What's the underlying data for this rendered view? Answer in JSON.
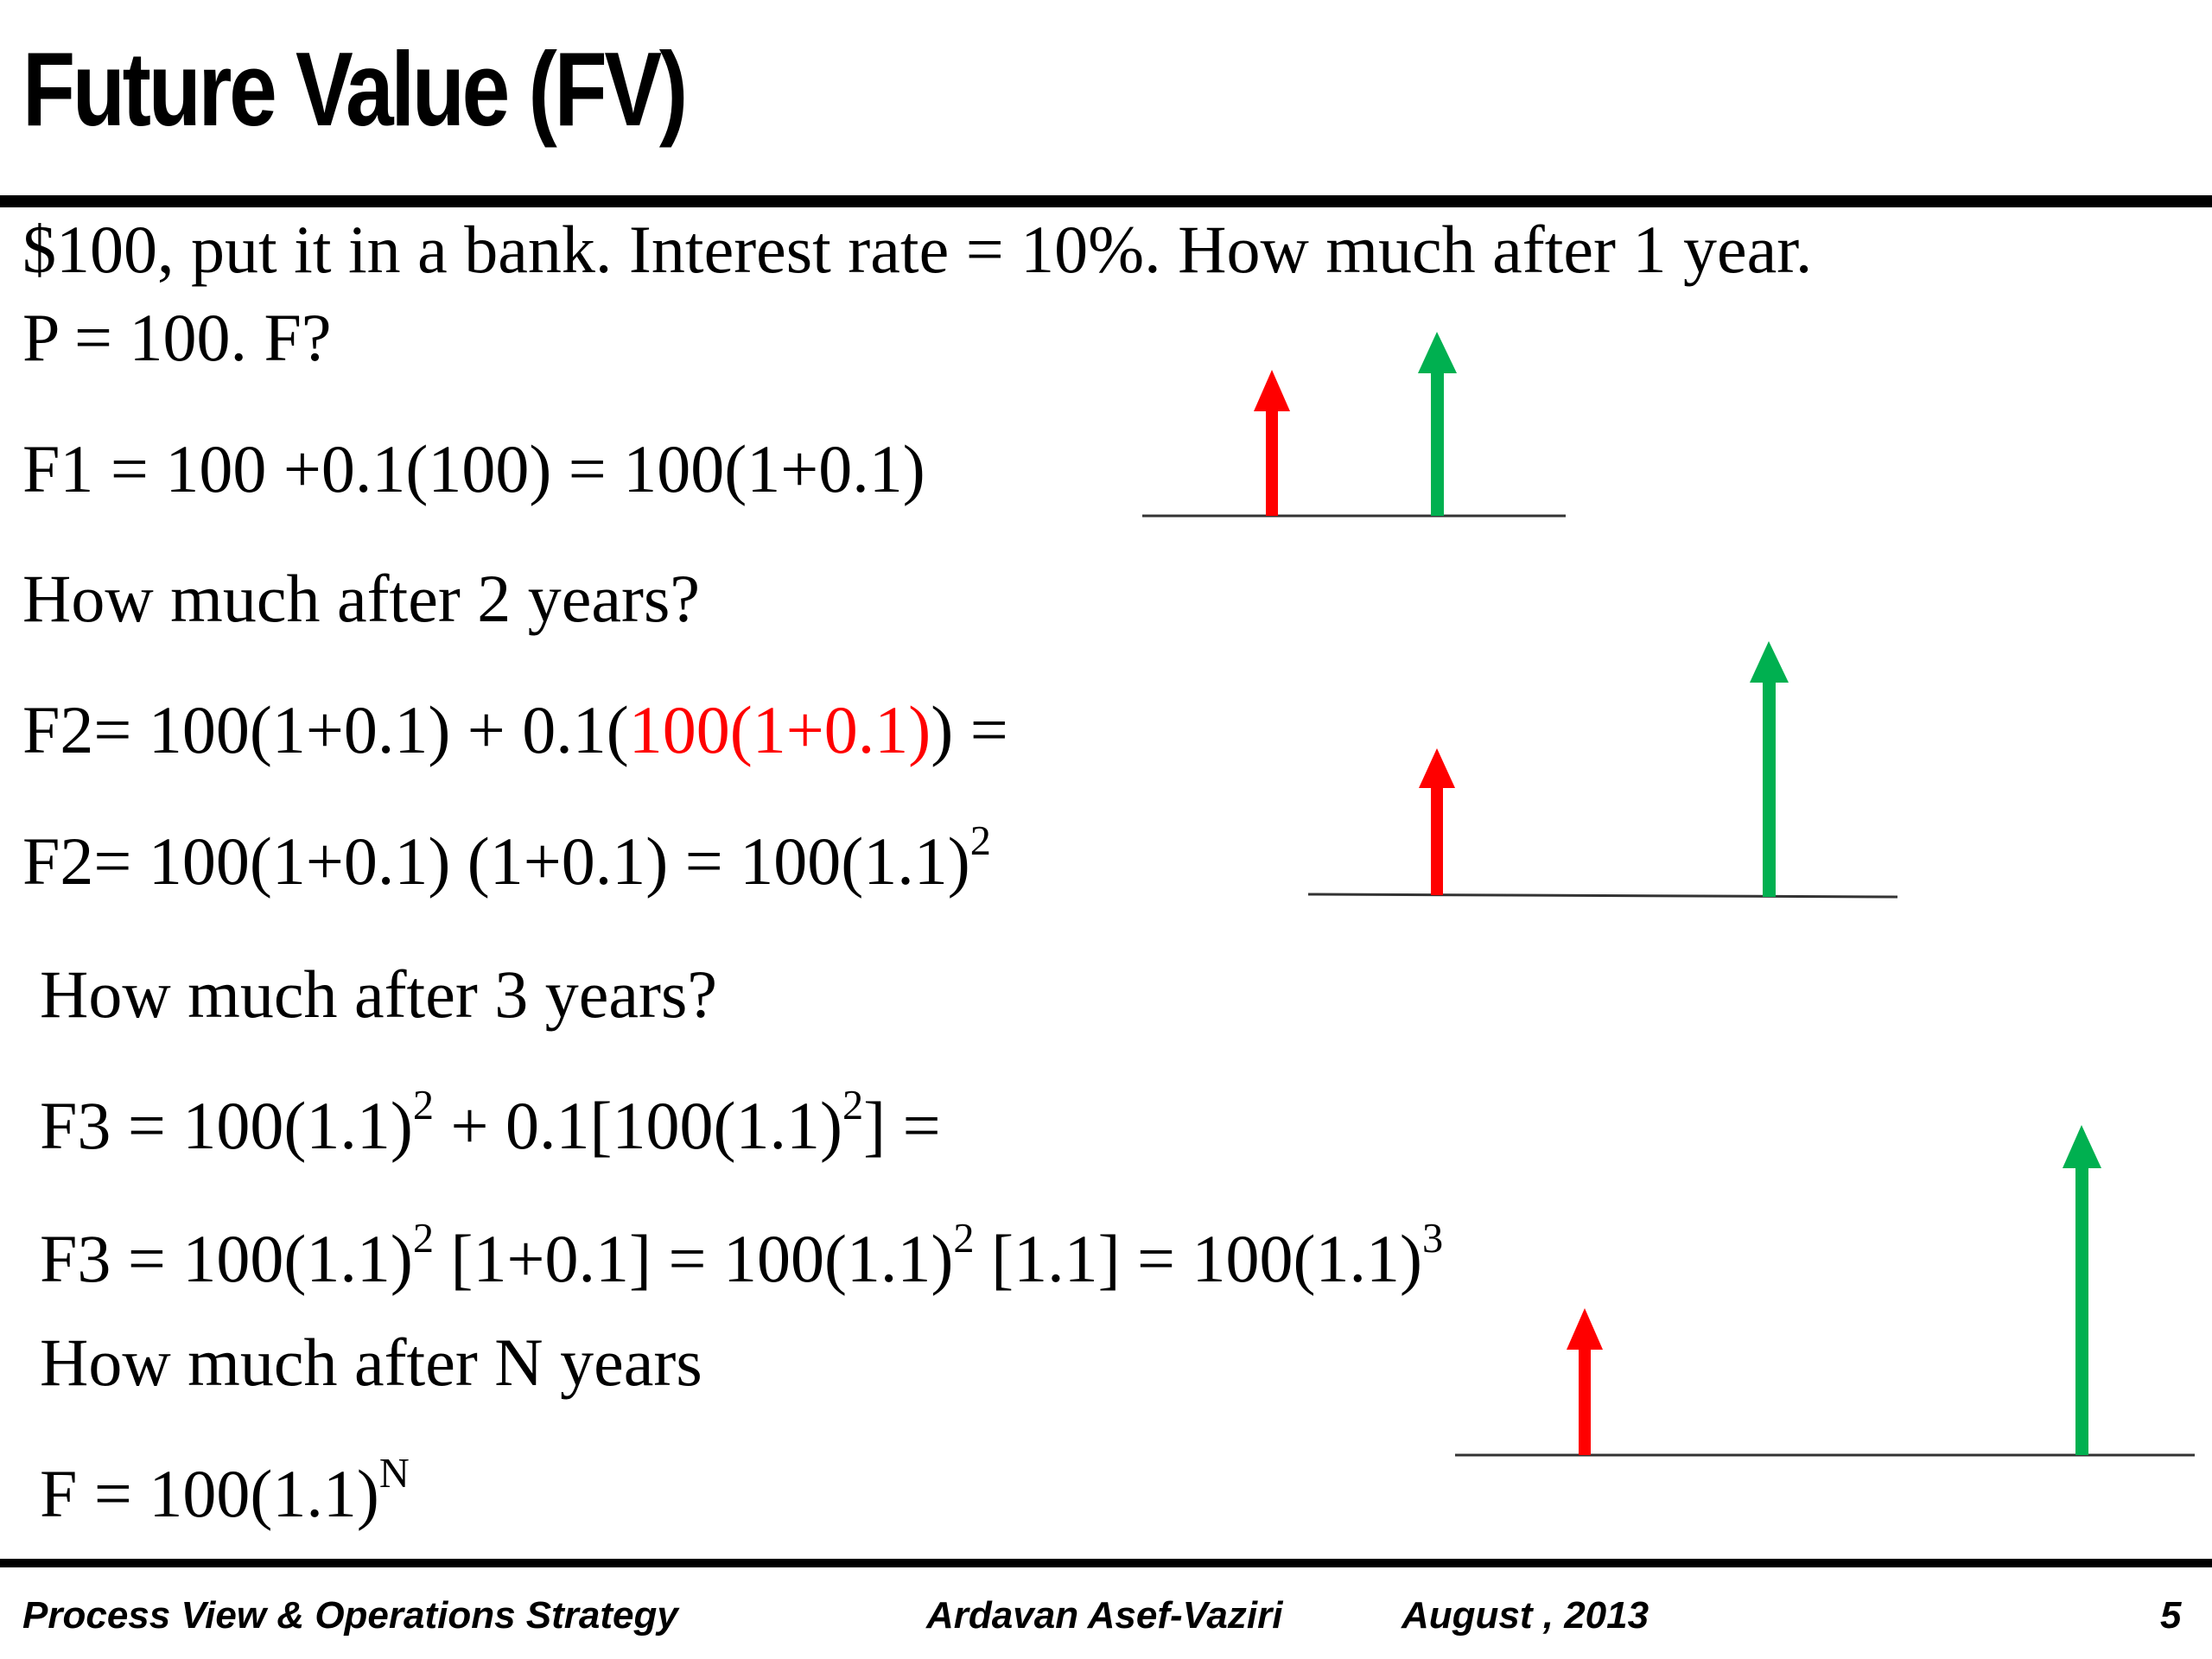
{
  "slide": {
    "title": "Future Value (FV)",
    "lines": {
      "l1": "$100, put it in a bank. Interest rate = 10%. How much after 1 year.",
      "l2": "P = 100.  F?",
      "l3": "F1 = 100 +0.1(100) = 100(1+0.1)",
      "l4": "How much after 2 years?",
      "l5a": "F2= 100(1+0.1) + 0.1(",
      "l5red": "100(1+0.1)",
      "l5b": ") =",
      "l6a": "F2= 100(1+0.1) (1+0.1) = 100(1.1)",
      "l6sup": "2",
      "l7": "How much after 3 years?",
      "l8a": "F3 = 100(1.1)",
      "l8sup1": "2",
      "l8b": " + 0.1[100(1.1)",
      "l8sup2": "2",
      "l8c": "] =",
      "l9a": "F3 = 100(1.1)",
      "l9sup1": "2",
      "l9b": " [1+0.1] = 100(1.1)",
      "l9sup2": "2",
      "l9c": " [1.1]  = 100(1.1)",
      "l9sup3": "3",
      "l10": "How much after N years",
      "l11a": "F = 100(1.1)",
      "l11sup": "N"
    }
  },
  "footer": {
    "course": "Process View & Operations Strategy",
    "author": "Ardavan Asef-Vaziri",
    "date": "August , 2013",
    "page": "5"
  },
  "colors": {
    "present": "#ff0000",
    "future": "#00b050",
    "text": "#000000"
  }
}
